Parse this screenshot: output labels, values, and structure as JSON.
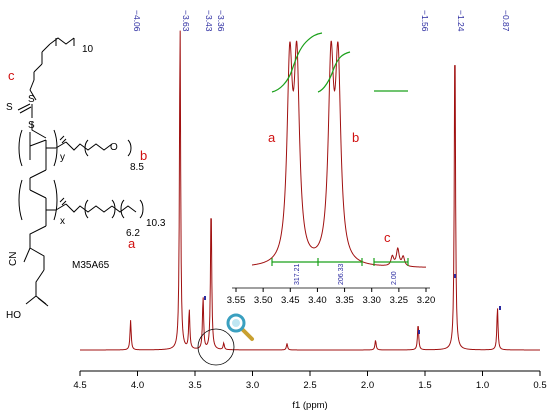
{
  "chart_data": {
    "type": "line",
    "title": "",
    "xlabel": "f1 (ppm)",
    "xlim": [
      4.5,
      0.5
    ],
    "x_ticks": [
      "4.5",
      "4.0",
      "3.5",
      "3.0",
      "2.5",
      "2.0",
      "1.5",
      "1.0",
      "0.5"
    ],
    "peak_labels": [
      "4.06",
      "3.63",
      "3.43",
      "3.36",
      "1.56",
      "1.24",
      "0.87"
    ],
    "series": [
      {
        "peaks": [
          {
            "x": 4.06,
            "h": 0.09
          },
          {
            "x": 3.63,
            "h": 1.0
          },
          {
            "x": 3.55,
            "h": 0.12
          },
          {
            "x": 3.43,
            "h": 0.16
          },
          {
            "x": 3.36,
            "h": 0.45
          },
          {
            "x": 3.25,
            "h": 0.02
          },
          {
            "x": 2.7,
            "h": 0.02
          },
          {
            "x": 1.93,
            "h": 0.03
          },
          {
            "x": 1.56,
            "h": 0.08
          },
          {
            "x": 1.24,
            "h": 0.98
          },
          {
            "x": 0.87,
            "h": 0.13
          }
        ]
      }
    ],
    "inset": {
      "xlim": [
        3.55,
        3.2
      ],
      "x_ticks": [
        "3.55",
        "3.50",
        "3.45",
        "3.40",
        "3.35",
        "3.30",
        "3.25",
        "3.20"
      ],
      "integrals": [
        "317.21",
        "206.33",
        "2.00"
      ]
    },
    "labels": {
      "a": "a",
      "b": "b",
      "c": "c"
    }
  },
  "structure": {
    "sample_name": "M35A65",
    "sub_10": "10",
    "sub_y": "y",
    "sub_x": "x",
    "sub_85": "8.5",
    "sub_62": "6.2",
    "sub_103": "10.3",
    "atom_s1": "S",
    "atom_s2": "S",
    "atom_s3": "S",
    "atom_o": "O",
    "atom_cn": "CN",
    "atom_ho": "HO"
  },
  "colors": {
    "spectrum": "#a01010",
    "labels": "#d01010",
    "peak_labels": "#2a2aa0",
    "integral": "#1aa01a",
    "magnifier": "#3aa0c0"
  }
}
